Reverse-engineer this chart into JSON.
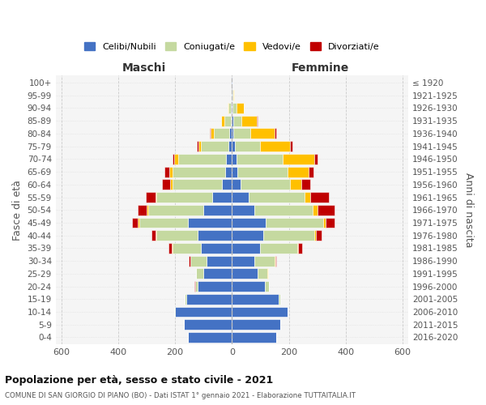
{
  "age_groups": [
    "0-4",
    "5-9",
    "10-14",
    "15-19",
    "20-24",
    "25-29",
    "30-34",
    "35-39",
    "40-44",
    "45-49",
    "50-54",
    "55-59",
    "60-64",
    "65-69",
    "70-74",
    "75-79",
    "80-84",
    "85-89",
    "90-94",
    "95-99",
    "100+"
  ],
  "birth_years": [
    "2016-2020",
    "2011-2015",
    "2006-2010",
    "2001-2005",
    "1996-2000",
    "1991-1995",
    "1986-1990",
    "1981-1985",
    "1976-1980",
    "1971-1975",
    "1966-1970",
    "1961-1965",
    "1956-1960",
    "1951-1955",
    "1946-1950",
    "1941-1945",
    "1936-1940",
    "1931-1935",
    "1926-1930",
    "1921-1925",
    "≤ 1920"
  ],
  "male": {
    "celibi": [
      155,
      170,
      200,
      160,
      120,
      100,
      90,
      110,
      120,
      155,
      100,
      70,
      35,
      25,
      20,
      13,
      8,
      5,
      3,
      1,
      1
    ],
    "coniugati": [
      0,
      0,
      2,
      5,
      10,
      25,
      55,
      100,
      145,
      170,
      195,
      195,
      175,
      185,
      170,
      95,
      55,
      22,
      8,
      2,
      1
    ],
    "vedovi": [
      0,
      0,
      0,
      0,
      0,
      0,
      1,
      2,
      3,
      5,
      5,
      5,
      8,
      10,
      12,
      10,
      12,
      10,
      4,
      1,
      0
    ],
    "divorziati": [
      0,
      0,
      0,
      0,
      1,
      2,
      5,
      10,
      15,
      20,
      30,
      32,
      28,
      18,
      8,
      5,
      2,
      0,
      0,
      0,
      0
    ]
  },
  "female": {
    "nubili": [
      155,
      170,
      195,
      165,
      115,
      90,
      80,
      100,
      110,
      120,
      80,
      60,
      30,
      20,
      15,
      10,
      6,
      5,
      3,
      1,
      1
    ],
    "coniugate": [
      0,
      0,
      2,
      5,
      15,
      35,
      70,
      130,
      180,
      200,
      205,
      195,
      175,
      175,
      165,
      90,
      60,
      28,
      12,
      3,
      1
    ],
    "vedove": [
      0,
      0,
      0,
      0,
      0,
      1,
      2,
      3,
      5,
      10,
      15,
      20,
      40,
      75,
      110,
      105,
      85,
      55,
      28,
      5,
      1
    ],
    "divorziate": [
      0,
      0,
      0,
      0,
      1,
      2,
      5,
      15,
      20,
      30,
      60,
      65,
      30,
      18,
      12,
      8,
      5,
      2,
      0,
      0,
      0
    ]
  },
  "colors": {
    "celibi": "#4472c4",
    "coniugati": "#c5d9a0",
    "vedovi": "#ffc000",
    "divorziati": "#c00000"
  },
  "title": "Popolazione per età, sesso e stato civile - 2021",
  "subtitle": "COMUNE DI SAN GIORGIO DI PIANO (BO) - Dati ISTAT 1° gennaio 2021 - Elaborazione TUTTAITALIA.IT",
  "xlabel_left": "Maschi",
  "xlabel_right": "Femmine",
  "ylabel_left": "Fasce di età",
  "ylabel_right": "Anni di nascita",
  "xlim": 620,
  "legend_labels": [
    "Celibi/Nubili",
    "Coniugati/e",
    "Vedovi/e",
    "Divorziati/e"
  ]
}
